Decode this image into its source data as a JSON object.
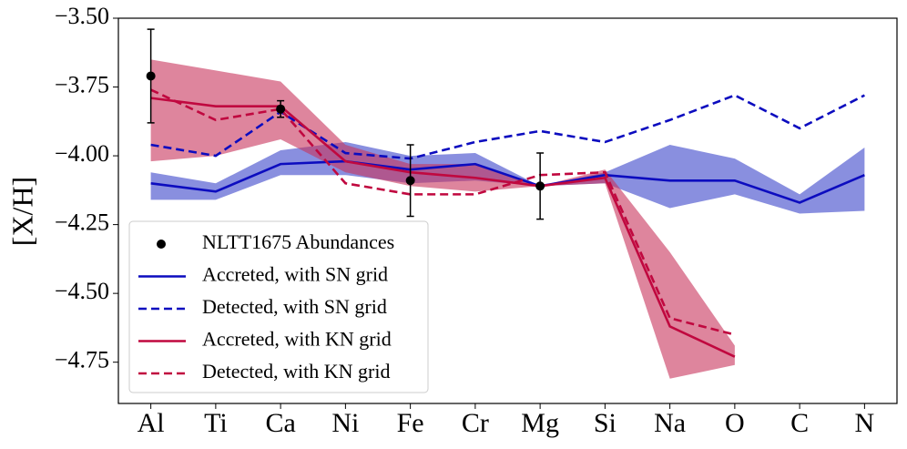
{
  "chart_data": {
    "type": "line",
    "ylabel": "[X/H]",
    "categories": [
      "Al",
      "Ti",
      "Ca",
      "Ni",
      "Fe",
      "Cr",
      "Mg",
      "Si",
      "Na",
      "O",
      "C",
      "N"
    ],
    "xlim": [
      -0.5,
      11.5
    ],
    "ylim": [
      -4.9,
      -3.5
    ],
    "yticks": [
      {
        "value": -3.5,
        "label": "−3.50"
      },
      {
        "value": -3.75,
        "label": "−3.75"
      },
      {
        "value": -4.0,
        "label": "−4.00"
      },
      {
        "value": -4.25,
        "label": "−4.25"
      },
      {
        "value": -4.5,
        "label": "−4.50"
      },
      {
        "value": -4.75,
        "label": "−4.75"
      }
    ],
    "legend": "lower left",
    "series": [
      {
        "name": "NLTT1675 Abundances",
        "color": "#000000",
        "style": "points",
        "values": [
          -3.71,
          null,
          -3.83,
          null,
          -4.09,
          null,
          -4.11,
          null,
          null,
          null,
          null,
          null
        ],
        "errors": [
          0.17,
          null,
          0.03,
          null,
          0.13,
          null,
          0.12,
          null,
          null,
          null,
          null,
          null
        ]
      },
      {
        "name": "Accreted, with SN grid",
        "color": "#0c0cbf",
        "style": "solid",
        "band_color": "#3b44c9",
        "values": [
          -4.1,
          -4.13,
          -4.03,
          -4.02,
          -4.05,
          -4.03,
          -4.11,
          -4.07,
          -4.09,
          -4.09,
          -4.17,
          -4.07
        ],
        "band_upper": [
          -4.06,
          -4.1,
          -3.98,
          -3.95,
          -4.0,
          -3.99,
          -4.11,
          -4.06,
          -3.96,
          -4.01,
          -4.14,
          -3.97
        ],
        "band_lower": [
          -4.16,
          -4.16,
          -4.07,
          -4.07,
          -4.1,
          -4.09,
          -4.11,
          -4.1,
          -4.19,
          -4.14,
          -4.21,
          -4.2
        ]
      },
      {
        "name": "Detected, with SN grid",
        "color": "#0c0cbf",
        "style": "dashed",
        "values": [
          -3.96,
          -4.0,
          -3.84,
          -3.99,
          -4.01,
          -3.95,
          -3.91,
          -3.95,
          -3.87,
          -3.78,
          -3.9,
          -3.78
        ]
      },
      {
        "name": "Accreted, with KN grid",
        "color": "#c0083f",
        "style": "solid",
        "band_color": "#c8335c",
        "values": [
          -3.79,
          -3.82,
          -3.82,
          -4.02,
          -4.06,
          -4.08,
          -4.11,
          -4.08,
          -4.62,
          -4.73,
          null,
          null
        ],
        "band_upper": [
          -3.65,
          -3.69,
          -3.73,
          -3.96,
          -4.03,
          -4.03,
          -4.11,
          -4.05,
          -4.35,
          -4.69,
          null,
          null
        ],
        "band_lower": [
          -4.02,
          -4.0,
          -3.94,
          -4.06,
          -4.11,
          -4.13,
          -4.11,
          -4.1,
          -4.81,
          -4.76,
          null,
          null
        ]
      },
      {
        "name": "Detected, with KN grid",
        "color": "#c0083f",
        "style": "dashed",
        "values": [
          -3.76,
          -3.87,
          -3.83,
          -4.1,
          -4.14,
          -4.14,
          -4.07,
          -4.06,
          -4.59,
          -4.65,
          null,
          null
        ]
      }
    ]
  }
}
